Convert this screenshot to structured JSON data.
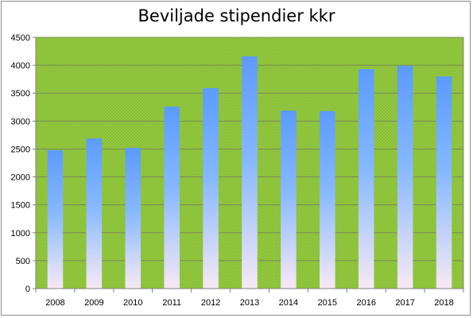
{
  "chart_data": {
    "type": "bar",
    "title": "Beviljade stipendier kkr",
    "xlabel": "",
    "ylabel": "",
    "categories": [
      "2008",
      "2009",
      "2010",
      "2011",
      "2012",
      "2013",
      "2014",
      "2015",
      "2016",
      "2017",
      "2018"
    ],
    "values": [
      2480,
      2690,
      2520,
      3260,
      3590,
      4160,
      3190,
      3180,
      3930,
      3990,
      3800
    ],
    "ylim": [
      0,
      4500
    ],
    "yticks": [
      0,
      500,
      1000,
      1500,
      2000,
      2500,
      3000,
      3500,
      4000,
      4500
    ],
    "grid": true,
    "legend": "none",
    "colors": {
      "plot_background": "#92c83e",
      "bar_top": "#5b9bff",
      "bar_bottom": "#f8e9f5",
      "gridline": "#7a8a5a"
    }
  }
}
